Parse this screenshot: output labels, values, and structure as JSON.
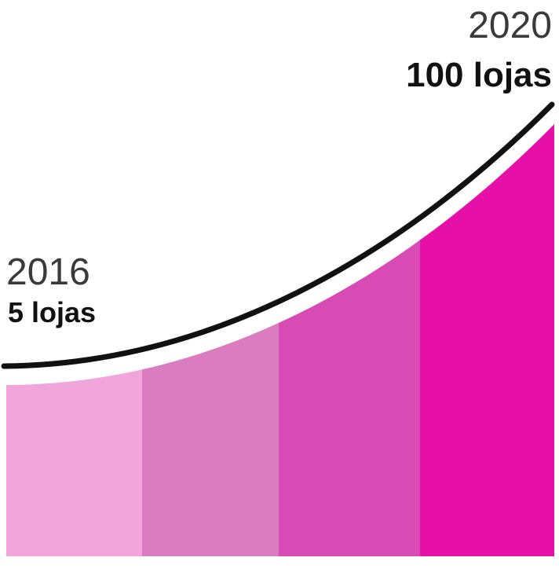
{
  "start": {
    "year": "2016",
    "label": "5 lojas"
  },
  "end": {
    "year": "2020",
    "label": "100 lojas"
  }
}
